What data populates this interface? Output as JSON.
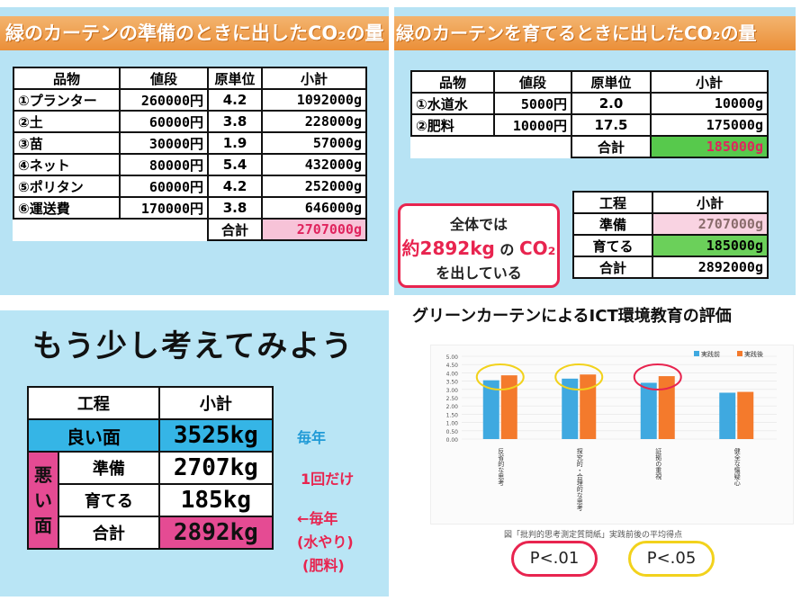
{
  "prep": {
    "title": "緑のカーテンの準備のときに出したCO₂の量",
    "headers": [
      "品物",
      "値段",
      "原単位",
      "小計"
    ],
    "rows": [
      [
        "①プランター",
        "260000円",
        "4.2",
        "1092000g"
      ],
      [
        "②土",
        "60000円",
        "3.8",
        "228000g"
      ],
      [
        "③苗",
        "30000円",
        "1.9",
        "57000g"
      ],
      [
        "④ネット",
        "80000円",
        "5.4",
        "432000g"
      ],
      [
        "⑤ポリタン",
        "60000円",
        "4.2",
        "252000g"
      ],
      [
        "⑥運送費",
        "170000円",
        "3.8",
        "646000g"
      ]
    ],
    "total_label": "合計",
    "total_value": "2707000g"
  },
  "grow": {
    "title": "緑のカーテンを育てるときに出したCO₂の量",
    "headers": [
      "品物",
      "値段",
      "原単位",
      "小計"
    ],
    "rows": [
      [
        "①水道水",
        "5000円",
        "2.0",
        "10000g"
      ],
      [
        "②肥料",
        "10000円",
        "17.5",
        "175000g"
      ]
    ],
    "total_label": "合計",
    "total_value": "185000g",
    "summary_headers": [
      "工程",
      "小計"
    ],
    "summary_rows": [
      [
        "準備",
        "2707000g"
      ],
      [
        "育てる",
        "185000g"
      ],
      [
        "合計",
        "2892000g"
      ]
    ],
    "callout_line1": "全体では",
    "callout_line2_amount": "約2892kg",
    "callout_line2_mid": "の",
    "callout_line2_co2": "CO₂",
    "callout_line3": "を出している"
  },
  "think": {
    "heading": "もう少し考えてみよう",
    "headers": [
      "工程",
      "小計"
    ],
    "good_label": "良い面",
    "good_value": "3525kg",
    "bad_label": "悪い面",
    "bad_rows": [
      [
        "準備",
        "2707kg"
      ],
      [
        "育てる",
        "185kg"
      ],
      [
        "合計",
        "2892kg"
      ]
    ],
    "note_yearly": "毎年",
    "note_once": "1回だけ",
    "note_arrow": "←毎年",
    "note_water": "(水やり)",
    "note_fert": "(肥料)"
  },
  "eval": {
    "caption": "グリーンカーテンによるICT環境教育の評価",
    "footer": "図「批判的思考測定質問紙」実践前後の平均得点",
    "p01": "P<.01",
    "p05": "P<.05",
    "colors": {
      "before": "#3fa9e0",
      "after": "#f47a2c"
    }
  },
  "chart_data": {
    "type": "bar",
    "categories": [
      "反省的な思考",
      "探究的・合理的な思考",
      "証拠の重視",
      "健全な懐疑心"
    ],
    "series": [
      {
        "name": "実践前",
        "values": [
          3.55,
          3.65,
          3.4,
          2.8
        ]
      },
      {
        "name": "実践後",
        "values": [
          3.85,
          3.9,
          3.8,
          2.85
        ]
      }
    ],
    "ylim": [
      0,
      5
    ],
    "yticks": [
      "0.00",
      "0.50",
      "1.00",
      "1.50",
      "2.00",
      "2.50",
      "3.00",
      "3.50",
      "4.00",
      "4.50",
      "5.00"
    ],
    "legend": "top-right"
  }
}
